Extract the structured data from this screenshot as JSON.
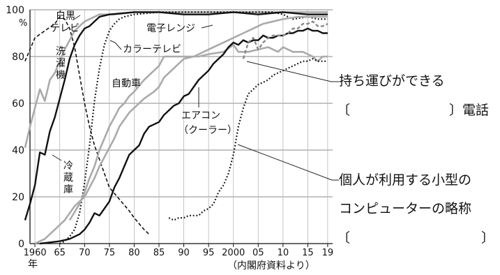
{
  "chart_data": {
    "type": "line",
    "y_unit": "%",
    "x_unit": "年",
    "source": "（内閣府資料より）",
    "ylim": [
      0,
      100
    ],
    "y_ticks": [
      0,
      20,
      40,
      60,
      80,
      100
    ],
    "x_ticks": [
      {
        "year": 1960,
        "label": "1960"
      },
      {
        "year": 1965,
        "label": "65"
      },
      {
        "year": 1970,
        "label": "70"
      },
      {
        "year": 1975,
        "label": "75"
      },
      {
        "year": 1980,
        "label": "80"
      },
      {
        "year": 1985,
        "label": "85"
      },
      {
        "year": 1990,
        "label": "90"
      },
      {
        "year": 1995,
        "label": "95"
      },
      {
        "year": 2000,
        "label": "2000"
      },
      {
        "year": 2005,
        "label": "05"
      },
      {
        "year": 2010,
        "label": "10"
      },
      {
        "year": 2015,
        "label": "15"
      },
      {
        "year": 2019,
        "label": "19"
      }
    ],
    "grid": true,
    "series": [
      {
        "name": "白黒テレビ",
        "style": "dashed",
        "color": "#111111",
        "points": [
          [
            1958,
            78
          ],
          [
            1960,
            88
          ],
          [
            1962,
            91
          ],
          [
            1964,
            94
          ],
          [
            1965,
            97
          ],
          [
            1966,
            96
          ],
          [
            1967,
            92
          ],
          [
            1968,
            84
          ],
          [
            1969,
            72
          ],
          [
            1970,
            60
          ],
          [
            1971,
            50
          ],
          [
            1972,
            42
          ],
          [
            1973,
            36
          ],
          [
            1974,
            30
          ],
          [
            1975,
            24
          ],
          [
            1977,
            19
          ],
          [
            1979,
            14
          ],
          [
            1980,
            11
          ],
          [
            1982,
            6
          ],
          [
            1983,
            4
          ]
        ]
      },
      {
        "name": "洗濯機",
        "style": "solid",
        "color": "#aaaaaa",
        "points": [
          [
            1958,
            41
          ],
          [
            1959,
            50
          ],
          [
            1960,
            58
          ],
          [
            1961,
            66
          ],
          [
            1962,
            61
          ],
          [
            1963,
            70
          ],
          [
            1964,
            73
          ],
          [
            1965,
            78
          ],
          [
            1966,
            83
          ],
          [
            1967,
            87
          ],
          [
            1968,
            91
          ],
          [
            1969,
            93
          ],
          [
            1970,
            95
          ],
          [
            1971,
            96
          ],
          [
            1973,
            98
          ],
          [
            1976,
            98
          ],
          [
            1980,
            99
          ],
          [
            1985,
            99
          ],
          [
            1990,
            99
          ],
          [
            1995,
            99
          ],
          [
            2000,
            99
          ],
          [
            2005,
            99
          ],
          [
            2010,
            99
          ],
          [
            2015,
            99
          ],
          [
            2019,
            99
          ]
        ]
      },
      {
        "name": "冷蔵庫",
        "style": "solid",
        "color": "#111111",
        "points": [
          [
            1958,
            10
          ],
          [
            1959,
            17
          ],
          [
            1960,
            25
          ],
          [
            1961,
            39
          ],
          [
            1962,
            38
          ],
          [
            1963,
            48
          ],
          [
            1964,
            54
          ],
          [
            1965,
            62
          ],
          [
            1966,
            70
          ],
          [
            1967,
            79
          ],
          [
            1968,
            85
          ],
          [
            1969,
            89
          ],
          [
            1970,
            92
          ],
          [
            1971,
            93
          ],
          [
            1972,
            95
          ],
          [
            1973,
            97
          ],
          [
            1975,
            98
          ],
          [
            1980,
            99
          ],
          [
            1985,
            99
          ],
          [
            1990,
            98
          ],
          [
            1995,
            98
          ],
          [
            2000,
            99
          ],
          [
            2005,
            98
          ],
          [
            2010,
            99
          ],
          [
            2015,
            98
          ],
          [
            2019,
            98
          ]
        ]
      },
      {
        "name": "カラーテレビ",
        "style": "dotted",
        "color": "#111111",
        "points": [
          [
            1965,
            0
          ],
          [
            1966,
            1
          ],
          [
            1967,
            3
          ],
          [
            1968,
            6
          ],
          [
            1969,
            13
          ],
          [
            1970,
            26
          ],
          [
            1971,
            42
          ],
          [
            1972,
            61
          ],
          [
            1973,
            75
          ],
          [
            1974,
            85
          ],
          [
            1975,
            91
          ],
          [
            1976,
            94
          ],
          [
            1977,
            96
          ],
          [
            1978,
            97
          ],
          [
            1980,
            98
          ],
          [
            1985,
            99
          ],
          [
            1990,
            99
          ],
          [
            1995,
            99
          ],
          [
            2000,
            99
          ],
          [
            2003,
            99
          ],
          [
            2005,
            99
          ],
          [
            2008,
            99
          ],
          [
            2010,
            98
          ],
          [
            2012,
            96
          ],
          [
            2015,
            97
          ],
          [
            2017,
            96
          ],
          [
            2019,
            96
          ]
        ]
      },
      {
        "name": "電子レンジ",
        "style": "solid",
        "color": "#aaaaaa",
        "points": [
          [
            1967,
            10
          ],
          [
            1969,
            17
          ],
          [
            1970,
            22
          ],
          [
            1971,
            28
          ],
          [
            1972,
            33
          ],
          [
            1973,
            40
          ],
          [
            1974,
            45
          ],
          [
            1975,
            50
          ],
          [
            1976,
            54
          ],
          [
            1977,
            58
          ],
          [
            1978,
            60
          ],
          [
            1979,
            63
          ],
          [
            1980,
            65
          ],
          [
            1982,
            70
          ],
          [
            1984,
            74
          ],
          [
            1985,
            76
          ],
          [
            1986,
            80
          ],
          [
            1987,
            80
          ],
          [
            1990,
            80
          ],
          [
            1993,
            80
          ],
          [
            1995,
            81
          ],
          [
            1998,
            82
          ],
          [
            2000,
            85
          ],
          [
            2001,
            82
          ],
          [
            2003,
            82
          ],
          [
            2005,
            83
          ],
          [
            2007,
            84
          ],
          [
            2009,
            82
          ],
          [
            2010,
            84
          ],
          [
            2012,
            82
          ],
          [
            2014,
            82
          ],
          [
            2016,
            80
          ],
          [
            2017,
            78
          ],
          [
            2018,
            80
          ],
          [
            2019,
            80
          ]
        ]
      },
      {
        "name": "自動車",
        "style": "solid",
        "color": "#aaaaaa",
        "points": [
          [
            1960,
            0
          ],
          [
            1961,
            1
          ],
          [
            1962,
            2
          ],
          [
            1963,
            4
          ],
          [
            1964,
            6
          ],
          [
            1965,
            8
          ],
          [
            1966,
            10
          ],
          [
            1967,
            13
          ],
          [
            1968,
            16
          ],
          [
            1970,
            20
          ],
          [
            1971,
            24
          ],
          [
            1972,
            28
          ],
          [
            1973,
            33
          ],
          [
            1974,
            37
          ],
          [
            1975,
            41
          ],
          [
            1976,
            45
          ],
          [
            1977,
            50
          ],
          [
            1978,
            53
          ],
          [
            1979,
            56
          ],
          [
            1980,
            58
          ],
          [
            1982,
            62
          ],
          [
            1984,
            65
          ],
          [
            1985,
            67
          ],
          [
            1986,
            71
          ],
          [
            1988,
            75
          ],
          [
            1990,
            79
          ],
          [
            1992,
            80
          ],
          [
            1994,
            82
          ],
          [
            1996,
            84
          ],
          [
            1998,
            86
          ],
          [
            2000,
            88
          ],
          [
            2002,
            90
          ],
          [
            2004,
            92
          ],
          [
            2006,
            94
          ],
          [
            2008,
            95
          ],
          [
            2010,
            96
          ],
          [
            2013,
            97
          ],
          [
            2016,
            97
          ],
          [
            2019,
            97
          ]
        ]
      },
      {
        "name": "エアコン",
        "style": "solid",
        "color": "#111111",
        "points": [
          [
            1961,
            0
          ],
          [
            1963,
            0.5
          ],
          [
            1965,
            1
          ],
          [
            1967,
            2
          ],
          [
            1969,
            4
          ],
          [
            1970,
            6
          ],
          [
            1971,
            9
          ],
          [
            1972,
            13
          ],
          [
            1973,
            12
          ],
          [
            1974,
            15
          ],
          [
            1975,
            18
          ],
          [
            1976,
            24
          ],
          [
            1977,
            28
          ],
          [
            1978,
            33
          ],
          [
            1979,
            38
          ],
          [
            1980,
            40
          ],
          [
            1981,
            42
          ],
          [
            1982,
            47
          ],
          [
            1983,
            50
          ],
          [
            1984,
            51
          ],
          [
            1985,
            52
          ],
          [
            1986,
            55
          ],
          [
            1987,
            57
          ],
          [
            1988,
            59
          ],
          [
            1989,
            60
          ],
          [
            1990,
            63
          ],
          [
            1991,
            64
          ],
          [
            1992,
            67
          ],
          [
            1993,
            70
          ],
          [
            1994,
            72
          ],
          [
            1995,
            74
          ],
          [
            1996,
            77
          ],
          [
            1997,
            79
          ],
          [
            1998,
            81
          ],
          [
            1999,
            84
          ],
          [
            2000,
            86
          ],
          [
            2001,
            85
          ],
          [
            2002,
            87
          ],
          [
            2003,
            86
          ],
          [
            2004,
            87
          ],
          [
            2005,
            87
          ],
          [
            2006,
            89
          ],
          [
            2007,
            88
          ],
          [
            2008,
            88
          ],
          [
            2009,
            89
          ],
          [
            2010,
            89
          ],
          [
            2011,
            90
          ],
          [
            2012,
            90
          ],
          [
            2013,
            91
          ],
          [
            2014,
            91
          ],
          [
            2015,
            92
          ],
          [
            2016,
            91
          ],
          [
            2017,
            91
          ],
          [
            2018,
            90
          ],
          [
            2019,
            90
          ]
        ]
      },
      {
        "name": "持ち運びができる（　）電話",
        "style": "dashed",
        "color": "#888888",
        "points": [
          [
            2002,
            79
          ],
          [
            2003,
            86
          ],
          [
            2004,
            88
          ],
          [
            2005,
            83
          ],
          [
            2006,
            86
          ],
          [
            2007,
            88
          ],
          [
            2008,
            89
          ],
          [
            2009,
            89
          ],
          [
            2010,
            89
          ],
          [
            2011,
            90
          ],
          [
            2012,
            92
          ],
          [
            2013,
            92
          ],
          [
            2014,
            94
          ],
          [
            2015,
            94
          ],
          [
            2016,
            95
          ],
          [
            2017,
            93
          ],
          [
            2018,
            93
          ],
          [
            2019,
            94
          ]
        ]
      },
      {
        "name": "個人が利用する小型のコンピューターの略称（　）",
        "style": "dotted",
        "color": "#111111",
        "points": [
          [
            1987,
            11
          ],
          [
            1988,
            10
          ],
          [
            1989,
            11
          ],
          [
            1990,
            11
          ],
          [
            1991,
            12
          ],
          [
            1992,
            12
          ],
          [
            1993,
            12
          ],
          [
            1994,
            14
          ],
          [
            1995,
            15
          ],
          [
            1996,
            17
          ],
          [
            1997,
            22
          ],
          [
            1998,
            25
          ],
          [
            1999,
            30
          ],
          [
            2000,
            38
          ],
          [
            2001,
            50
          ],
          [
            2002,
            58
          ],
          [
            2003,
            64
          ],
          [
            2004,
            66
          ],
          [
            2005,
            68
          ],
          [
            2006,
            69
          ],
          [
            2007,
            70
          ],
          [
            2008,
            72
          ],
          [
            2009,
            73
          ],
          [
            2010,
            74
          ],
          [
            2011,
            75
          ],
          [
            2012,
            76
          ],
          [
            2013,
            77
          ],
          [
            2014,
            78
          ],
          [
            2015,
            78
          ],
          [
            2016,
            79
          ],
          [
            2017,
            78
          ],
          [
            2018,
            78
          ],
          [
            2019,
            78
          ]
        ]
      }
    ],
    "labels": {
      "b_w_tv_1": "白黒",
      "b_w_tv_2": "テレビ",
      "washer": "洗濯機",
      "fridge": "冷蔵庫",
      "color_tv": "カラーテレビ",
      "microwave": "電子レンジ",
      "car": "自動車",
      "aircon_1": "エアコン",
      "aircon_2": "（クーラー）"
    },
    "annotations": {
      "phone_line1": "持ち運びができる",
      "phone_bracket_open": "〔",
      "phone_bracket_close": "〕電話",
      "pc_line1": "個人が利用する小型の",
      "pc_line2": "コンピューターの略称",
      "pc_bracket_open": "〔",
      "pc_bracket_close": "〕"
    }
  }
}
